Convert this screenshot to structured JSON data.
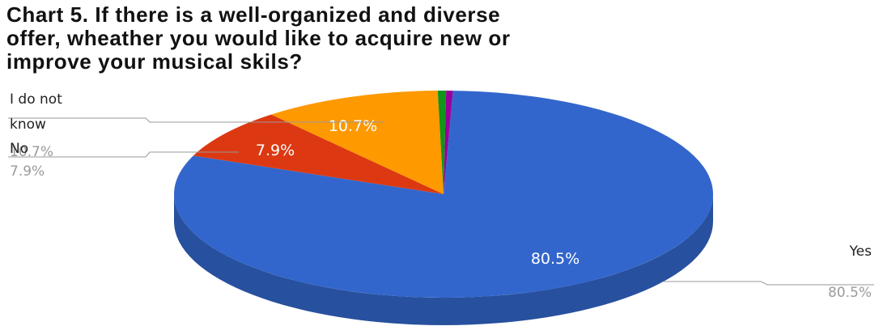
{
  "chart_data": {
    "type": "pie",
    "title_lines": [
      "Chart 5. If there is a well-organized and diverse",
      "offer, wheather you would like to acquire new or",
      "improve your musical skils?"
    ],
    "slices": [
      {
        "name": "Yes",
        "value": 80.5,
        "label": "80.5%",
        "color": "#3366cc",
        "shade": "#27509e"
      },
      {
        "name": "No",
        "value": 7.9,
        "label": "7.9%",
        "color": "#dc3912",
        "shade": "#a92b0d"
      },
      {
        "name": "I do not know",
        "value": 10.7,
        "label": "10.7%",
        "color": "#ff9900",
        "shade": "#c77700"
      },
      {
        "name": "",
        "value": 0.5,
        "label": "",
        "color": "#109618",
        "shade": "#0c7312"
      },
      {
        "name": "",
        "value": 0.4,
        "label": "",
        "color": "#990099",
        "shade": "#730073"
      }
    ],
    "legend_labels": [
      {
        "lines": [
          "I do not",
          "know"
        ],
        "pct": "10.7%"
      },
      {
        "lines": [
          "No"
        ],
        "pct": "7.9%"
      },
      {
        "lines": [
          "Yes"
        ],
        "pct": "80.5%"
      }
    ],
    "style": "3d"
  }
}
